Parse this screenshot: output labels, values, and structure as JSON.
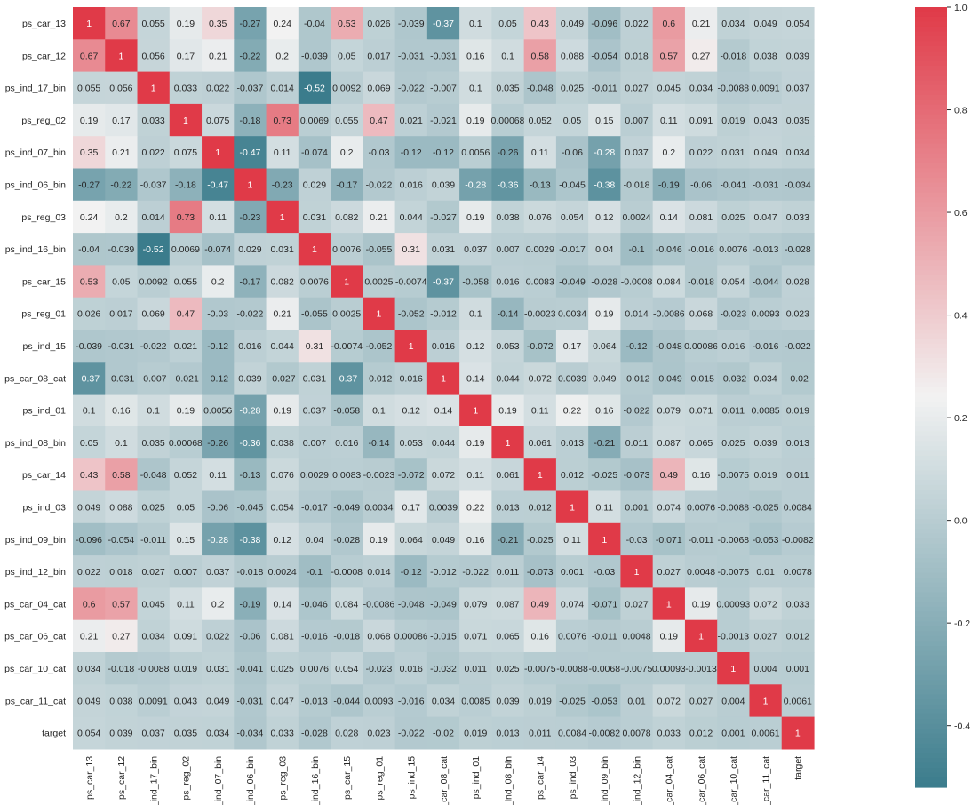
{
  "chart_data": {
    "type": "heatmap",
    "title": "",
    "xlabel": "",
    "ylabel": "",
    "labels": [
      "ps_car_13",
      "ps_car_12",
      "ps_ind_17_bin",
      "ps_reg_02",
      "ps_ind_07_bin",
      "ps_ind_06_bin",
      "ps_reg_03",
      "ps_ind_16_bin",
      "ps_car_15",
      "ps_reg_01",
      "ps_ind_15",
      "ps_car_08_cat",
      "ps_ind_01",
      "ps_ind_08_bin",
      "ps_car_14",
      "ps_ind_03",
      "ps_ind_09_bin",
      "ps_ind_12_bin",
      "ps_car_04_cat",
      "ps_car_06_cat",
      "ps_car_10_cat",
      "ps_car_11_cat",
      "target"
    ],
    "matrix": [
      [
        "1",
        "0.67",
        "0.055",
        "0.19",
        "0.35",
        "-0.27",
        "0.24",
        "-0.04",
        "0.53",
        "0.026",
        "-0.039",
        "-0.37",
        "0.1",
        "0.05",
        "0.43",
        "0.049",
        "-0.096",
        "0.022",
        "0.6",
        "0.21",
        "0.034",
        "0.049",
        "0.054"
      ],
      [
        "0.67",
        "1",
        "0.056",
        "0.17",
        "0.21",
        "-0.22",
        "0.2",
        "-0.039",
        "0.05",
        "0.017",
        "-0.031",
        "-0.031",
        "0.16",
        "0.1",
        "0.58",
        "0.088",
        "-0.054",
        "0.018",
        "0.57",
        "0.27",
        "-0.018",
        "0.038",
        "0.039"
      ],
      [
        "0.055",
        "0.056",
        "1",
        "0.033",
        "0.022",
        "-0.037",
        "0.014",
        "-0.52",
        "0.0092",
        "0.069",
        "-0.022",
        "-0.007",
        "0.1",
        "0.035",
        "-0.048",
        "0.025",
        "-0.011",
        "0.027",
        "0.045",
        "0.034",
        "-0.0088",
        "0.0091",
        "0.037"
      ],
      [
        "0.19",
        "0.17",
        "0.033",
        "1",
        "0.075",
        "-0.18",
        "0.73",
        "0.0069",
        "0.055",
        "0.47",
        "0.021",
        "-0.021",
        "0.19",
        "0.00068",
        "0.052",
        "0.05",
        "0.15",
        "0.007",
        "0.11",
        "0.091",
        "0.019",
        "0.043",
        "0.035"
      ],
      [
        "0.35",
        "0.21",
        "0.022",
        "0.075",
        "1",
        "-0.47",
        "0.11",
        "-0.074",
        "0.2",
        "-0.03",
        "-0.12",
        "-0.12",
        "0.0056",
        "-0.26",
        "0.11",
        "-0.06",
        "-0.28",
        "0.037",
        "0.2",
        "0.022",
        "0.031",
        "0.049",
        "0.034"
      ],
      [
        "-0.27",
        "-0.22",
        "-0.037",
        "-0.18",
        "-0.47",
        "1",
        "-0.23",
        "0.029",
        "-0.17",
        "-0.022",
        "0.016",
        "0.039",
        "-0.28",
        "-0.36",
        "-0.13",
        "-0.045",
        "-0.38",
        "-0.018",
        "-0.19",
        "-0.06",
        "-0.041",
        "-0.031",
        "-0.034"
      ],
      [
        "0.24",
        "0.2",
        "0.014",
        "0.73",
        "0.11",
        "-0.23",
        "1",
        "0.031",
        "0.082",
        "0.21",
        "0.044",
        "-0.027",
        "0.19",
        "0.038",
        "0.076",
        "0.054",
        "0.12",
        "0.0024",
        "0.14",
        "0.081",
        "0.025",
        "0.047",
        "0.033"
      ],
      [
        "-0.04",
        "-0.039",
        "-0.52",
        "0.0069",
        "-0.074",
        "0.029",
        "0.031",
        "1",
        "0.0076",
        "-0.055",
        "0.31",
        "0.031",
        "0.037",
        "0.007",
        "0.0029",
        "-0.017",
        "0.04",
        "-0.1",
        "-0.046",
        "-0.016",
        "0.0076",
        "-0.013",
        "-0.028"
      ],
      [
        "0.53",
        "0.05",
        "0.0092",
        "0.055",
        "0.2",
        "-0.17",
        "0.082",
        "0.0076",
        "1",
        "0.0025",
        "-0.0074",
        "-0.37",
        "-0.058",
        "0.016",
        "0.0083",
        "-0.049",
        "-0.028",
        "-0.0008",
        "0.084",
        "-0.018",
        "0.054",
        "-0.044",
        "0.028"
      ],
      [
        "0.026",
        "0.017",
        "0.069",
        "0.47",
        "-0.03",
        "-0.022",
        "0.21",
        "-0.055",
        "0.0025",
        "1",
        "-0.052",
        "-0.012",
        "0.1",
        "-0.14",
        "-0.0023",
        "0.0034",
        "0.19",
        "0.014",
        "-0.0086",
        "0.068",
        "-0.023",
        "0.0093",
        "0.023"
      ],
      [
        "-0.039",
        "-0.031",
        "-0.022",
        "0.021",
        "-0.12",
        "0.016",
        "0.044",
        "0.31",
        "-0.0074",
        "-0.052",
        "1",
        "0.016",
        "0.12",
        "0.053",
        "-0.072",
        "0.17",
        "0.064",
        "-0.12",
        "-0.048",
        "0.00086",
        "0.016",
        "-0.016",
        "-0.022"
      ],
      [
        "-0.37",
        "-0.031",
        "-0.007",
        "-0.021",
        "-0.12",
        "0.039",
        "-0.027",
        "0.031",
        "-0.37",
        "-0.012",
        "0.016",
        "1",
        "0.14",
        "0.044",
        "0.072",
        "0.0039",
        "0.049",
        "-0.012",
        "-0.049",
        "-0.015",
        "-0.032",
        "0.034",
        "-0.02"
      ],
      [
        "0.1",
        "0.16",
        "0.1",
        "0.19",
        "0.0056",
        "-0.28",
        "0.19",
        "0.037",
        "-0.058",
        "0.1",
        "0.12",
        "0.14",
        "1",
        "0.19",
        "0.11",
        "0.22",
        "0.16",
        "-0.022",
        "0.079",
        "0.071",
        "0.011",
        "0.0085",
        "0.019"
      ],
      [
        "0.05",
        "0.1",
        "0.035",
        "0.00068",
        "-0.26",
        "-0.36",
        "0.038",
        "0.007",
        "0.016",
        "-0.14",
        "0.053",
        "0.044",
        "0.19",
        "1",
        "0.061",
        "0.013",
        "-0.21",
        "0.011",
        "0.087",
        "0.065",
        "0.025",
        "0.039",
        "0.013"
      ],
      [
        "0.43",
        "0.58",
        "-0.048",
        "0.052",
        "0.11",
        "-0.13",
        "0.076",
        "0.0029",
        "0.0083",
        "-0.0023",
        "-0.072",
        "0.072",
        "0.11",
        "0.061",
        "1",
        "0.012",
        "-0.025",
        "-0.073",
        "0.49",
        "0.16",
        "-0.0075",
        "0.019",
        "0.011"
      ],
      [
        "0.049",
        "0.088",
        "0.025",
        "0.05",
        "-0.06",
        "-0.045",
        "0.054",
        "-0.017",
        "-0.049",
        "0.0034",
        "0.17",
        "0.0039",
        "0.22",
        "0.013",
        "0.012",
        "1",
        "0.11",
        "0.001",
        "0.074",
        "0.0076",
        "-0.0088",
        "-0.025",
        "0.0084"
      ],
      [
        "-0.096",
        "-0.054",
        "-0.011",
        "0.15",
        "-0.28",
        "-0.38",
        "0.12",
        "0.04",
        "-0.028",
        "0.19",
        "0.064",
        "0.049",
        "0.16",
        "-0.21",
        "-0.025",
        "0.11",
        "1",
        "-0.03",
        "-0.071",
        "-0.011",
        "-0.0068",
        "-0.053",
        "-0.0082"
      ],
      [
        "0.022",
        "0.018",
        "0.027",
        "0.007",
        "0.037",
        "-0.018",
        "0.0024",
        "-0.1",
        "-0.0008",
        "0.014",
        "-0.12",
        "-0.012",
        "-0.022",
        "0.011",
        "-0.073",
        "0.001",
        "-0.03",
        "1",
        "0.027",
        "0.0048",
        "-0.0075",
        "0.01",
        "0.0078"
      ],
      [
        "0.6",
        "0.57",
        "0.045",
        "0.11",
        "0.2",
        "-0.19",
        "0.14",
        "-0.046",
        "0.084",
        "-0.0086",
        "-0.048",
        "-0.049",
        "0.079",
        "0.087",
        "0.49",
        "0.074",
        "-0.071",
        "0.027",
        "1",
        "0.19",
        "0.00093",
        "0.072",
        "0.033"
      ],
      [
        "0.21",
        "0.27",
        "0.034",
        "0.091",
        "0.022",
        "-0.06",
        "0.081",
        "-0.016",
        "-0.018",
        "0.068",
        "0.00086",
        "-0.015",
        "0.071",
        "0.065",
        "0.16",
        "0.0076",
        "-0.011",
        "0.0048",
        "0.19",
        "1",
        "-0.0013",
        "0.027",
        "0.012"
      ],
      [
        "0.034",
        "-0.018",
        "-0.0088",
        "0.019",
        "0.031",
        "-0.041",
        "0.025",
        "0.0076",
        "0.054",
        "-0.023",
        "0.016",
        "-0.032",
        "0.011",
        "0.025",
        "-0.0075",
        "-0.0088",
        "-0.0068",
        "-0.0075",
        "0.00093",
        "-0.0013",
        "1",
        "0.004",
        "0.001"
      ],
      [
        "0.049",
        "0.038",
        "0.0091",
        "0.043",
        "0.049",
        "-0.031",
        "0.047",
        "-0.013",
        "-0.044",
        "0.0093",
        "-0.016",
        "0.034",
        "0.0085",
        "0.039",
        "0.019",
        "-0.025",
        "-0.053",
        "0.01",
        "0.072",
        "0.027",
        "0.004",
        "1",
        "0.0061"
      ],
      [
        "0.054",
        "0.039",
        "0.037",
        "0.035",
        "0.034",
        "-0.034",
        "0.033",
        "-0.028",
        "0.028",
        "0.023",
        "-0.022",
        "-0.02",
        "0.019",
        "0.013",
        "0.011",
        "0.0084",
        "-0.0082",
        "0.0078",
        "0.033",
        "0.012",
        "0.001",
        "0.0061",
        "1"
      ]
    ],
    "colorbar": {
      "range": [
        -0.52,
        1.0
      ],
      "center": 0.24,
      "ticks": [
        "1.0",
        "0.8",
        "0.6",
        "0.4",
        "0.2",
        "0.0",
        "-0.2",
        "-0.4"
      ],
      "tick_values": [
        1.0,
        0.8,
        0.6,
        0.4,
        0.2,
        0.0,
        -0.2,
        -0.4
      ],
      "colormap": "diverging teal-white-red",
      "low_color": "#3b7c8c",
      "mid_color": "#f2f2f2",
      "high_color": "#e03a48"
    },
    "grid": false,
    "legend": "colorbar-right"
  }
}
